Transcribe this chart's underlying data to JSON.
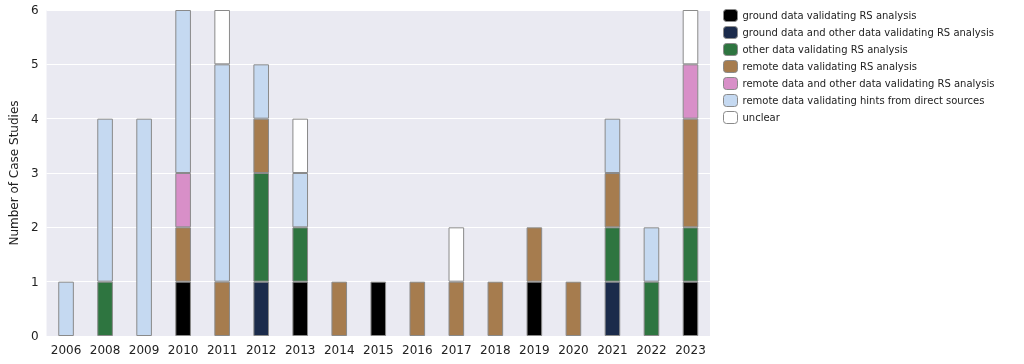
{
  "chart_data": {
    "type": "bar",
    "stacked": true,
    "ylabel": "Number of Case Studies",
    "categories": [
      "2006",
      "2008",
      "2009",
      "2010",
      "2011",
      "2012",
      "2013",
      "2014",
      "2015",
      "2016",
      "2017",
      "2018",
      "2019",
      "2020",
      "2021",
      "2022",
      "2023"
    ],
    "series": [
      {
        "name": "ground data validating RS analysis",
        "color": "#000000",
        "values": [
          null,
          null,
          null,
          1,
          null,
          null,
          1,
          null,
          1,
          null,
          null,
          null,
          1,
          null,
          null,
          null,
          1
        ]
      },
      {
        "name": "ground data and other data validating RS analysis",
        "color": "#1b2b4b",
        "values": [
          null,
          null,
          null,
          null,
          null,
          1,
          null,
          null,
          null,
          null,
          null,
          null,
          null,
          null,
          1,
          null,
          null
        ]
      },
      {
        "name": "other data validating RS analysis",
        "color": "#2e7540",
        "values": [
          null,
          1,
          null,
          null,
          null,
          2,
          1,
          null,
          null,
          null,
          null,
          null,
          null,
          null,
          1,
          1,
          1
        ]
      },
      {
        "name": "remote data validating RS analysis",
        "color": "#a67c4e",
        "values": [
          null,
          null,
          null,
          1,
          1,
          1,
          null,
          1,
          null,
          1,
          1,
          1,
          1,
          1,
          1,
          null,
          2
        ]
      },
      {
        "name": "remote data and other data validating RS analysis",
        "color": "#d88fc8",
        "values": [
          null,
          null,
          null,
          1,
          null,
          null,
          null,
          null,
          null,
          null,
          null,
          null,
          null,
          null,
          null,
          null,
          1
        ]
      },
      {
        "name": "remote data validating hints from direct sources",
        "color": "#c5d9f1",
        "values": [
          1,
          3,
          4,
          3,
          4,
          1,
          1,
          null,
          null,
          null,
          null,
          null,
          null,
          null,
          1,
          1,
          null
        ]
      },
      {
        "name": "unclear",
        "color": "#ffffff",
        "values": [
          null,
          null,
          null,
          null,
          1,
          null,
          1,
          null,
          null,
          null,
          1,
          null,
          null,
          null,
          null,
          null,
          1
        ]
      }
    ],
    "ylim": [
      0,
      6
    ],
    "yticks": [
      0,
      1,
      2,
      3,
      4,
      5,
      6
    ],
    "grid": "y",
    "legend": "top right"
  }
}
